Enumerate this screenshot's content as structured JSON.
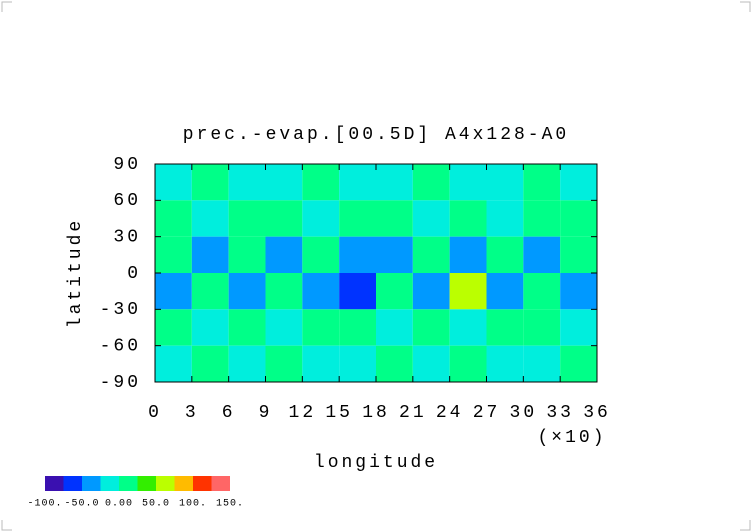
{
  "chart_data": {
    "type": "contour",
    "title": "prec.-evap.[00.5D] A4x128-A0",
    "x_label": "longitude",
    "x_unit": "(×10)",
    "y_label": "latitude",
    "xlim": [
      0,
      36
    ],
    "ylim": [
      -90,
      90
    ],
    "xticks": [
      0,
      3,
      6,
      9,
      12,
      15,
      18,
      21,
      24,
      27,
      30,
      33,
      36
    ],
    "yticks": [
      90,
      60,
      30,
      0,
      -30,
      -60,
      -90
    ],
    "x_edges": [
      0,
      3,
      6,
      9,
      12,
      15,
      18,
      21,
      24,
      27,
      30,
      33,
      36
    ],
    "y_edges": [
      90,
      60,
      30,
      0,
      -30,
      -60,
      -90
    ],
    "values": [
      [
        -10,
        10,
        -10,
        -10,
        10,
        -10,
        -10,
        10,
        -10,
        -10,
        10,
        -10
      ],
      [
        10,
        -10,
        10,
        10,
        -10,
        10,
        10,
        -10,
        10,
        -10,
        10,
        10
      ],
      [
        10,
        -30,
        10,
        -30,
        10,
        -40,
        -30,
        10,
        -30,
        10,
        -30,
        10
      ],
      [
        -30,
        10,
        -30,
        10,
        -40,
        -60,
        10,
        -30,
        60,
        -30,
        10,
        -30
      ],
      [
        10,
        -10,
        10,
        -10,
        10,
        10,
        -10,
        10,
        -10,
        10,
        10,
        -10
      ],
      [
        -10,
        10,
        -10,
        10,
        -10,
        -10,
        10,
        -10,
        10,
        -10,
        -10,
        10
      ]
    ],
    "colorbar": {
      "levels": [
        -100,
        -75,
        -50,
        -25,
        0,
        25,
        50,
        75,
        100,
        125,
        150
      ],
      "colors": [
        "#3a10b0",
        "#0033ff",
        "#0099ff",
        "#00eedd",
        "#00ff88",
        "#33ee00",
        "#bbff00",
        "#ffbb00",
        "#ff3300",
        "#ff6666"
      ],
      "ticks": [
        {
          "value": -100,
          "label": "-100."
        },
        {
          "value": -50,
          "label": "-50.0"
        },
        {
          "value": 0,
          "label": "0.00"
        },
        {
          "value": 50,
          "label": "50.0"
        },
        {
          "value": 100,
          "label": "100."
        },
        {
          "value": 150,
          "label": "150."
        }
      ]
    }
  }
}
